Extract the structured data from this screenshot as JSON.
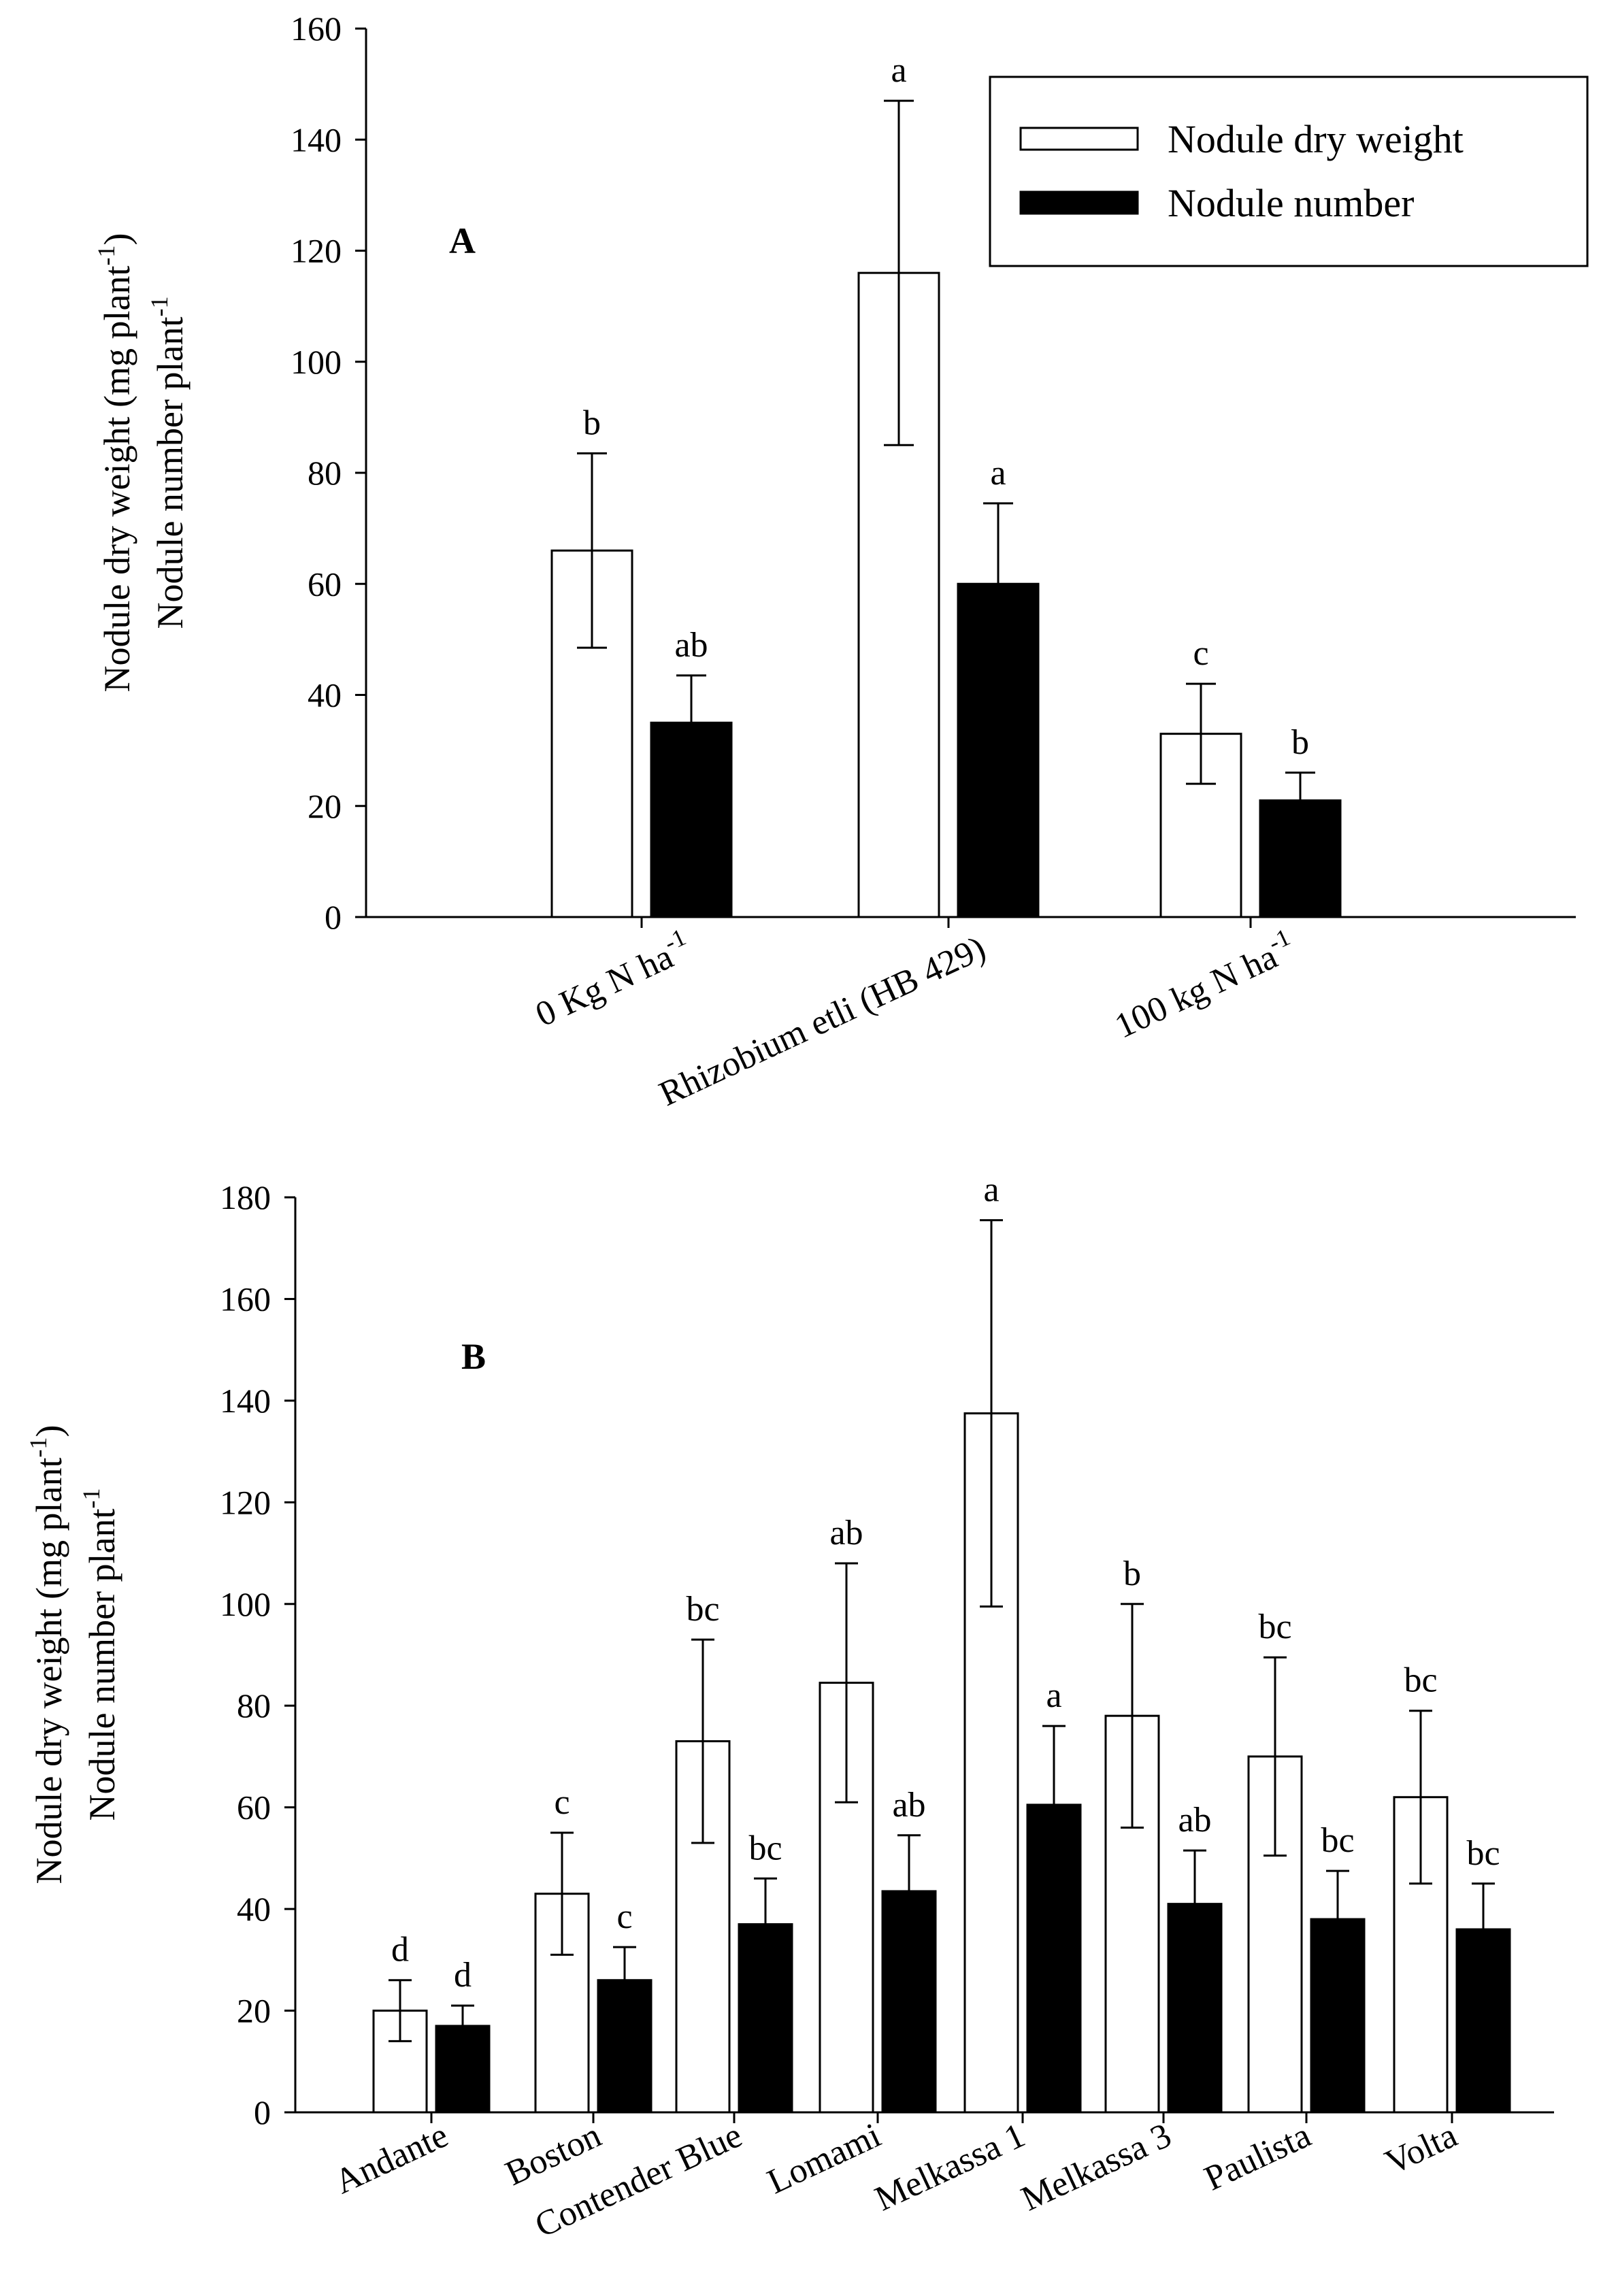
{
  "chart_data": [
    {
      "type": "bar",
      "panel": "A",
      "ylabel_line1": "Nodule dry weight (mg plant",
      "ylabel_line2": "Nodule number plant",
      "ylabel_sup": "-1",
      "ylim": [
        0,
        160
      ],
      "yticks": [
        "0",
        "20",
        "40",
        "60",
        "80",
        "100",
        "120",
        "140",
        "160"
      ],
      "categories": [
        {
          "label": "0 Kg N ha",
          "sup": "-1"
        },
        {
          "label": "Rhizobium etli (HB 429)",
          "sup": ""
        },
        {
          "label": "100 kg N ha",
          "sup": "-1"
        }
      ],
      "series": [
        {
          "name": "Nodule dry weight",
          "fill": "#ffffff",
          "values": [
            66,
            116,
            33
          ],
          "errors": [
            17.5,
            31,
            9
          ],
          "letters": [
            "b",
            "a",
            "c"
          ]
        },
        {
          "name": "Nodule number",
          "fill": "#000000",
          "values": [
            35,
            60,
            21
          ],
          "errors": [
            8.5,
            14.5,
            5
          ],
          "letters": [
            "ab",
            "a",
            "b"
          ]
        }
      ],
      "legend": [
        "Nodule dry weight",
        "Nodule number"
      ]
    },
    {
      "type": "bar",
      "panel": "B",
      "ylabel_line1": "Nodule dry weight (mg plant",
      "ylabel_line2": "Nodule number plant",
      "ylabel_sup": "-1",
      "ylim": [
        0,
        180
      ],
      "yticks": [
        "0",
        "20",
        "40",
        "60",
        "80",
        "100",
        "120",
        "140",
        "160",
        "180"
      ],
      "categories": [
        {
          "label": "Andante",
          "sup": ""
        },
        {
          "label": "Boston",
          "sup": ""
        },
        {
          "label": "Contender Blue",
          "sup": ""
        },
        {
          "label": "Lomami",
          "sup": ""
        },
        {
          "label": "Melkassa 1",
          "sup": ""
        },
        {
          "label": "Melkassa 3",
          "sup": ""
        },
        {
          "label": "Paulista",
          "sup": ""
        },
        {
          "label": "Volta",
          "sup": ""
        }
      ],
      "series": [
        {
          "name": "Nodule dry weight",
          "fill": "#ffffff",
          "values": [
            20,
            43,
            73,
            84.5,
            137.5,
            78,
            70,
            62
          ],
          "errors": [
            6,
            12,
            20,
            23.5,
            38,
            22,
            19.5,
            17
          ],
          "letters": [
            "d",
            "c",
            "bc",
            "ab",
            "a",
            "b",
            "bc",
            "bc"
          ]
        },
        {
          "name": "Nodule number",
          "fill": "#000000",
          "values": [
            17,
            26,
            37,
            43.5,
            60.5,
            41,
            38,
            36
          ],
          "errors": [
            4,
            6.5,
            9,
            11,
            15.5,
            10.5,
            9.5,
            9
          ],
          "letters": [
            "d",
            "c",
            "bc",
            "ab",
            "a",
            "ab",
            "bc",
            "bc"
          ]
        }
      ]
    }
  ]
}
